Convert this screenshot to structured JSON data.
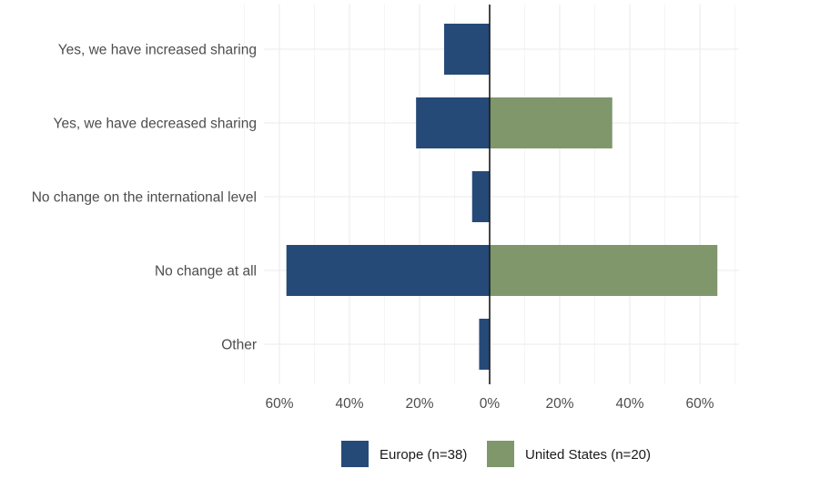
{
  "chart_data": {
    "type": "bar",
    "orientation": "horizontal-diverging",
    "title": "",
    "xlabel": "",
    "ylabel": "",
    "categories": [
      "Yes, we have increased sharing",
      "Yes, we have decreased sharing",
      "No change on the international level",
      "No change at all",
      "Other"
    ],
    "series": [
      {
        "name": "Europe (n=38)",
        "direction": "left",
        "color": "#264a78",
        "values": [
          13,
          21,
          5,
          58,
          3
        ]
      },
      {
        "name": "United States (n=20)",
        "direction": "right",
        "color": "#7f976b",
        "values": [
          0,
          35,
          0,
          65,
          0
        ]
      }
    ],
    "xlim": [
      -60,
      60
    ],
    "x_ticks": [
      {
        "value": -60,
        "label": "60%"
      },
      {
        "value": -40,
        "label": "40%"
      },
      {
        "value": -20,
        "label": "20%"
      },
      {
        "value": 0,
        "label": "0%"
      },
      {
        "value": 20,
        "label": "20%"
      },
      {
        "value": 40,
        "label": "40%"
      },
      {
        "value": 60,
        "label": "60%"
      }
    ],
    "grid": true,
    "legend_position": "bottom"
  }
}
